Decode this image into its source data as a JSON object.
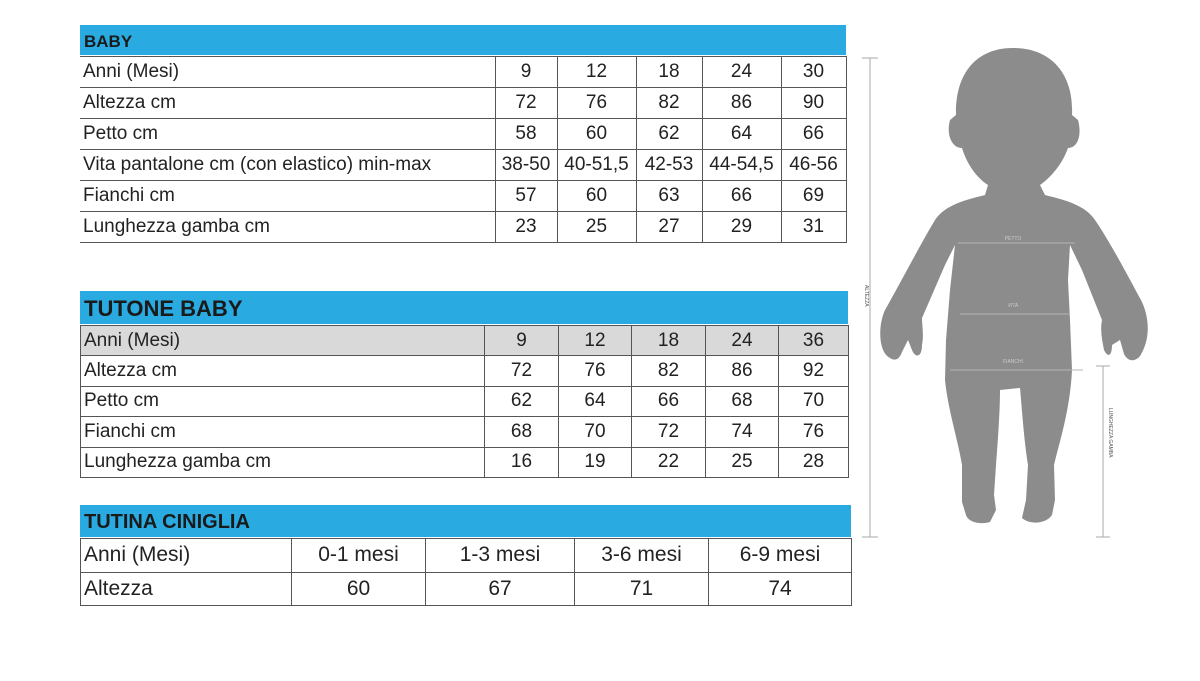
{
  "baby": {
    "title": "BABY",
    "rows": [
      [
        "Anni (Mesi)",
        "9",
        "12",
        "18",
        "24",
        "30"
      ],
      [
        "Altezza cm",
        "72",
        "76",
        "82",
        "86",
        "90"
      ],
      [
        "Petto cm",
        "58",
        "60",
        "62",
        "64",
        "66"
      ],
      [
        "Vita pantalone cm (con elastico) min-max",
        "38-50",
        "40-51,5",
        "42-53",
        "44-54,5",
        "46-56"
      ],
      [
        "Fianchi cm",
        "57",
        "60",
        "63",
        "66",
        "69"
      ],
      [
        "Lunghezza gamba cm",
        "23",
        "25",
        "27",
        "29",
        "31"
      ]
    ]
  },
  "tutone": {
    "title": "TUTONE BABY",
    "rows": [
      [
        "Anni (Mesi)",
        "9",
        "12",
        "18",
        "24",
        "36"
      ],
      [
        "Altezza cm",
        "72",
        "76",
        "82",
        "86",
        "92"
      ],
      [
        "Petto cm",
        "62",
        "64",
        "66",
        "68",
        "70"
      ],
      [
        "Fianchi cm",
        "68",
        "70",
        "72",
        "74",
        "76"
      ],
      [
        "Lunghezza gamba cm",
        "16",
        "19",
        "22",
        "25",
        "28"
      ]
    ]
  },
  "tutina": {
    "title": "TUTINA CINIGLIA",
    "rows": [
      [
        "Anni (Mesi)",
        "0-1 mesi",
        "1-3 mesi",
        "3-6 mesi",
        "6-9 mesi"
      ],
      [
        "Altezza",
        "60",
        "67",
        "71",
        "74"
      ]
    ]
  },
  "figure": {
    "altezza": "ALTEZZA",
    "petto": "PETTO",
    "vita": "VITA",
    "fianchi": "FIANCHI",
    "lunghezza_gamba": "LUNGHEZZA GAMBA"
  },
  "colors": {
    "header_bar": "#29abe2",
    "silhouette": "#8c8c8c",
    "first_row_tutone": "#d9d9d9"
  }
}
